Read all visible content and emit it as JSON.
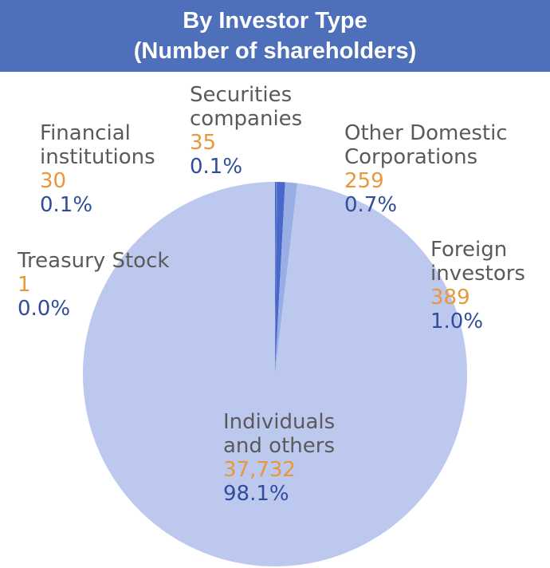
{
  "header": {
    "title_line1": "By Investor Type",
    "title_line2": "(Number of shareholders)"
  },
  "colors": {
    "header_bg": "#4e6fba",
    "count_text": "#e8973a",
    "percent_text": "#2f4d9b",
    "name_text": "#5a5a5a"
  },
  "chart_data": {
    "type": "pie",
    "title": "By Investor Type (Number of shareholders)",
    "slices": [
      {
        "key": "treasury",
        "name_lines": [
          "Treasury Stock"
        ],
        "count": "1",
        "percent": "0.0%",
        "value": 1,
        "color": "#3b5ec4"
      },
      {
        "key": "financial",
        "name_lines": [
          "Financial",
          "institutions"
        ],
        "count": "30",
        "percent": "0.1%",
        "value": 30,
        "color": "#3b5ec4"
      },
      {
        "key": "securities",
        "name_lines": [
          "Securities",
          "companies"
        ],
        "count": "35",
        "percent": "0.1%",
        "value": 35,
        "color": "#5a78d0"
      },
      {
        "key": "other_domestic",
        "name_lines": [
          "Other Domestic",
          "Corporations"
        ],
        "count": "259",
        "percent": "0.7%",
        "value": 259,
        "color": "#4868cc"
      },
      {
        "key": "foreign",
        "name_lines": [
          "Foreign",
          "investors"
        ],
        "count": "389",
        "percent": "1.0%",
        "value": 389,
        "color": "#9aaee6"
      },
      {
        "key": "individuals",
        "name_lines": [
          "Individuals",
          "and others"
        ],
        "count": "37,732",
        "percent": "98.1%",
        "value": 37732,
        "color": "#bdc8ef"
      }
    ]
  }
}
